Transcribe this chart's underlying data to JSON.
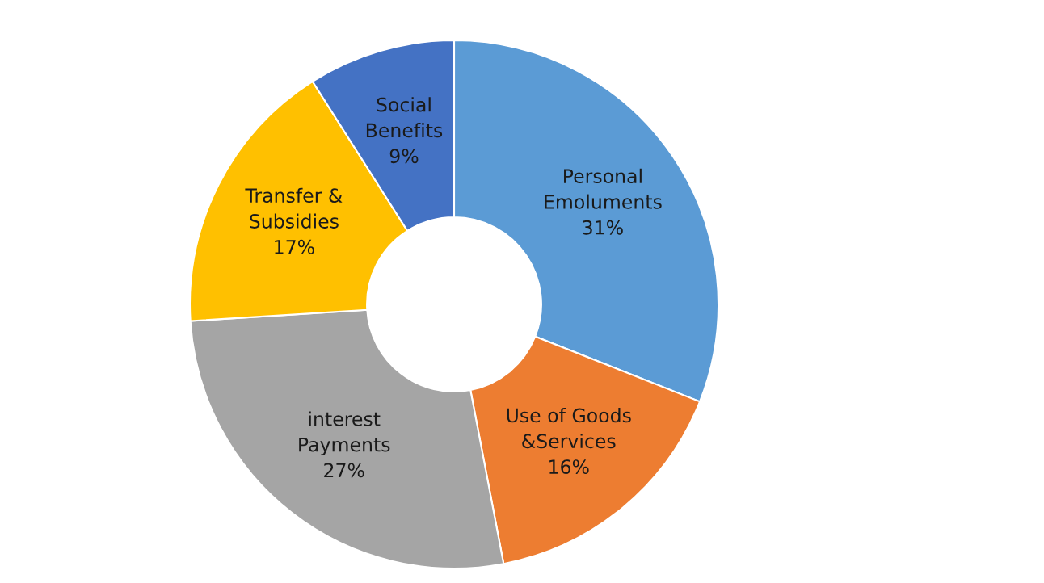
{
  "chart_data": {
    "type": "donut",
    "categories": [
      "Personal\nEmoluments",
      "Use of Goods\n&Services",
      "interest\nPayments",
      "Transfer &\nSubsidies",
      "Social\nBenefits"
    ],
    "values": [
      31,
      16,
      27,
      17,
      9
    ],
    "value_labels": [
      "31%",
      "16%",
      "27%",
      "17%",
      "9%"
    ],
    "colors": [
      "#5b9bd5",
      "#ed7d31",
      "#a5a5a5",
      "#ffc000",
      "#4472c4"
    ],
    "legend": false
  }
}
